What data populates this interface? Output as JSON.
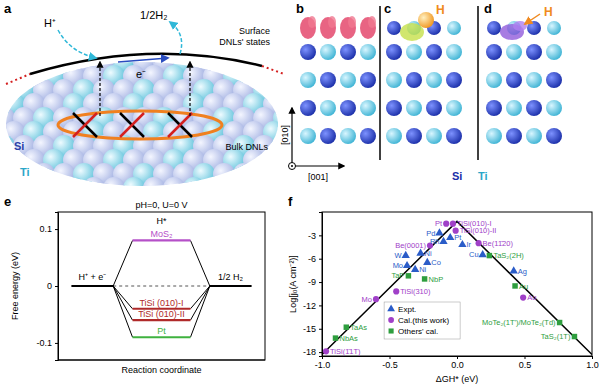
{
  "chart_data": [
    {
      "type": "energy_diagram",
      "title": "pH=0, U=0 V",
      "y_label": "Free energy (eV)",
      "x_label": "Reaction coordinate",
      "categories": [
        "H⁺ + e⁻",
        "H*",
        "1/2 H₂"
      ],
      "series": [
        {
          "name": "MoS₂",
          "color": "#b550c8",
          "values": [
            0,
            0.08,
            0
          ]
        },
        {
          "name": "TiSi (010)-I",
          "color": "#b02a2a",
          "values": [
            0,
            -0.04,
            0
          ]
        },
        {
          "name": "TiSi (010)-II",
          "color": "#b02a2a",
          "values": [
            0,
            -0.06,
            0
          ]
        },
        {
          "name": "Pt",
          "color": "#3fb23f",
          "values": [
            0,
            -0.09,
            0
          ]
        }
      ],
      "ylim": [
        -0.13,
        0.13
      ],
      "yticks": [
        -0.1,
        0,
        0.1
      ],
      "tick_labels": "y"
    },
    {
      "type": "scatter",
      "x_label": "ΔGH* (eV)",
      "y_label": "Log[j₀(A cm⁻²)]",
      "xlim": [
        -1,
        1
      ],
      "xticks": [
        {
          "value": -1,
          "label": "-1.0"
        },
        {
          "value": -0.5,
          "label": "-0.5"
        },
        {
          "value": 0,
          "label": "0.0"
        },
        {
          "value": 0.5,
          "label": "0.5"
        },
        {
          "value": 1,
          "label": "1.0"
        }
      ],
      "ylim": [
        -18.5,
        0
      ],
      "yticks": [
        -18,
        -15,
        -12,
        -9,
        -6,
        -3
      ],
      "legend": "bottom",
      "series": [
        {
          "type": "line",
          "color": "#000000",
          "line_style": "solid",
          "x": [
            -1,
            0,
            1
          ],
          "values": [
            -18.3,
            -1.2,
            -18.3
          ]
        },
        {
          "name": "Expt.",
          "color": "#2a5cc8",
          "marker": "triangle",
          "x": [
            -0.13,
            -0.05,
            -0.1,
            0.04,
            -0.38,
            -0.27,
            -0.22,
            -0.37,
            -0.31,
            0.19,
            0.42
          ],
          "values": [
            -2.7,
            -3.3,
            -3.8,
            -4.2,
            -5.6,
            -5.3,
            -6.5,
            -6.9,
            -7.4,
            -5.5,
            -7.6
          ],
          "labels": [
            "Pd",
            "Pt",
            "Rh",
            "Ir",
            "W",
            "Ni",
            "Co",
            "Mo",
            "Ni",
            "Cu",
            "Ag"
          ]
        },
        {
          "name": "Cal.(this work)",
          "color": "#a040c8",
          "marker": "circle",
          "x": [
            -0.08,
            -0.03,
            -0.01,
            -0.2,
            0.16,
            -0.45,
            -0.6,
            0.49,
            -0.97
          ],
          "values": [
            -1.5,
            -1.5,
            -2.4,
            -4.3,
            -4.0,
            -10.2,
            -11.2,
            -11.0,
            -17.9
          ],
          "labels": [
            "Pt",
            "TiSi(010)-I",
            "TiSi(010)-II",
            "Be(0001)",
            "Be(11̄20)",
            "TiSi(310)",
            "Mo",
            "Au",
            "TiSi(1̄1T)"
          ]
        },
        {
          "name": "Others' cal.",
          "color": "#2e9e3e",
          "marker": "square",
          "x": [
            -0.24,
            -0.36,
            0.24,
            0.43,
            -0.82,
            -0.9,
            0.76,
            0.87
          ],
          "values": [
            -8.6,
            -8.2,
            -5.6,
            -9.5,
            -14.8,
            -16.2,
            -14.2,
            -16.0
          ],
          "labels": [
            "NbP",
            "TaP",
            "TaS₂(2H)",
            "Au",
            "TaAs",
            "NbAs",
            "MoTe₂(1T')/MoTe₂(Td)",
            "TaS₂(1T)"
          ]
        }
      ]
    }
  ],
  "diagram": {
    "panel_labels": [
      "a",
      "b",
      "c",
      "d",
      "e",
      "f"
    ],
    "panel_a": {
      "h_plus": "H⁺",
      "half_h2": "1/2H₂",
      "electron": "e⁻",
      "surface_states": [
        "Surface",
        "DNLs' states"
      ],
      "bulk": "Bulk DNLs",
      "si": "Si",
      "ti": "Ti"
    },
    "panels_bcd": {
      "axis_vertical": "[010]",
      "axis_horizontal": "[001]",
      "hydrogen": "H",
      "legend": [
        "Si",
        "Ti"
      ]
    }
  }
}
